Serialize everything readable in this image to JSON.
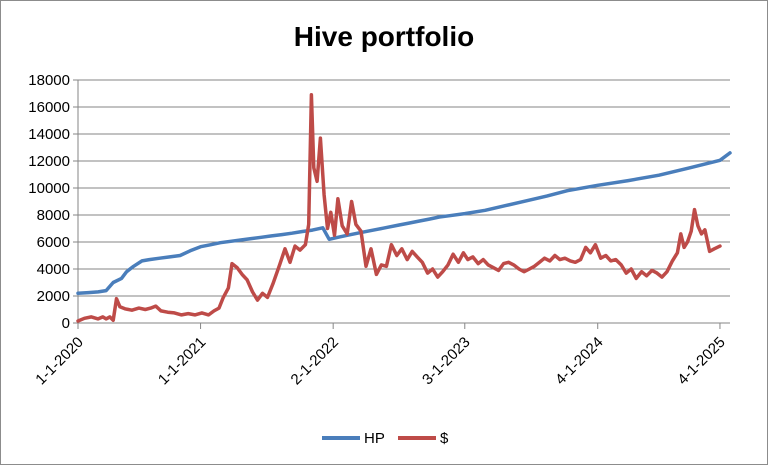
{
  "chart_data": {
    "type": "line",
    "title": "Hive portfolio",
    "xlabel": "",
    "ylabel": "",
    "ylim": [
      0,
      18000
    ],
    "y_ticks": [
      "0",
      "2000",
      "4000",
      "6000",
      "8000",
      "10000",
      "12000",
      "14000",
      "16000",
      "18000"
    ],
    "x_ticks": [
      "1-1-2020",
      "1-1-2021",
      "2-1-2022",
      "3-1-2023",
      "4-1-2024",
      "4-1-2025"
    ],
    "x_tick_dates": [
      "2020-01-01",
      "2021-01-01",
      "2022-02-01",
      "2023-03-01",
      "2024-04-01",
      "2025-04-01"
    ],
    "xlim": [
      "2020-01-01",
      "2025-05-01"
    ],
    "grid": "horizontal",
    "legend_position": "bottom",
    "series": [
      {
        "name": "HP",
        "color": "#4a7ebb",
        "points": [
          [
            "2020-01-01",
            2200
          ],
          [
            "2020-02-01",
            2250
          ],
          [
            "2020-03-01",
            2300
          ],
          [
            "2020-03-25",
            2400
          ],
          [
            "2020-04-15",
            3000
          ],
          [
            "2020-05-10",
            3300
          ],
          [
            "2020-05-25",
            3800
          ],
          [
            "2020-06-15",
            4200
          ],
          [
            "2020-07-10",
            4600
          ],
          [
            "2020-08-01",
            4700
          ],
          [
            "2020-09-01",
            4800
          ],
          [
            "2020-10-01",
            4900
          ],
          [
            "2020-11-01",
            5000
          ],
          [
            "2020-12-01",
            5350
          ],
          [
            "2021-01-01",
            5650
          ],
          [
            "2021-02-01",
            5800
          ],
          [
            "2021-03-01",
            5950
          ],
          [
            "2021-04-01",
            6050
          ],
          [
            "2021-05-01",
            6150
          ],
          [
            "2021-06-01",
            6250
          ],
          [
            "2021-07-01",
            6350
          ],
          [
            "2021-08-01",
            6450
          ],
          [
            "2021-09-01",
            6550
          ],
          [
            "2021-10-01",
            6650
          ],
          [
            "2021-11-01",
            6780
          ],
          [
            "2021-12-01",
            6880
          ],
          [
            "2022-01-01",
            7050
          ],
          [
            "2022-01-20",
            6200
          ],
          [
            "2022-02-15",
            6350
          ],
          [
            "2022-03-15",
            6500
          ],
          [
            "2022-04-15",
            6650
          ],
          [
            "2022-05-15",
            6800
          ],
          [
            "2022-06-15",
            6950
          ],
          [
            "2022-07-15",
            7100
          ],
          [
            "2022-08-15",
            7250
          ],
          [
            "2022-09-15",
            7400
          ],
          [
            "2022-10-15",
            7550
          ],
          [
            "2022-11-15",
            7700
          ],
          [
            "2022-12-15",
            7850
          ],
          [
            "2023-01-15",
            7950
          ],
          [
            "2023-03-01",
            8100
          ],
          [
            "2023-05-01",
            8350
          ],
          [
            "2023-07-01",
            8700
          ],
          [
            "2023-09-01",
            9050
          ],
          [
            "2023-11-01",
            9400
          ],
          [
            "2024-01-01",
            9800
          ],
          [
            "2024-04-01",
            10200
          ],
          [
            "2024-07-01",
            10550
          ],
          [
            "2024-10-01",
            10950
          ],
          [
            "2025-01-01",
            11500
          ],
          [
            "2025-04-01",
            12050
          ],
          [
            "2025-05-01",
            12600
          ]
        ]
      },
      {
        "name": "$",
        "color": "#be4b48",
        "points": [
          [
            "2020-01-01",
            150
          ],
          [
            "2020-01-20",
            350
          ],
          [
            "2020-02-10",
            450
          ],
          [
            "2020-03-01",
            300
          ],
          [
            "2020-03-15",
            450
          ],
          [
            "2020-03-25",
            300
          ],
          [
            "2020-04-05",
            450
          ],
          [
            "2020-04-15",
            200
          ],
          [
            "2020-04-25",
            1800
          ],
          [
            "2020-05-05",
            1200
          ],
          [
            "2020-05-20",
            1050
          ],
          [
            "2020-06-10",
            950
          ],
          [
            "2020-07-01",
            1100
          ],
          [
            "2020-07-20",
            1000
          ],
          [
            "2020-08-05",
            1100
          ],
          [
            "2020-08-20",
            1250
          ],
          [
            "2020-09-05",
            900
          ],
          [
            "2020-09-25",
            800
          ],
          [
            "2020-10-15",
            750
          ],
          [
            "2020-11-05",
            600
          ],
          [
            "2020-11-25",
            700
          ],
          [
            "2020-12-15",
            600
          ],
          [
            "2021-01-05",
            750
          ],
          [
            "2021-01-25",
            600
          ],
          [
            "2021-02-10",
            900
          ],
          [
            "2021-02-25",
            1100
          ],
          [
            "2021-03-10",
            1900
          ],
          [
            "2021-03-25",
            2600
          ],
          [
            "2021-04-05",
            4400
          ],
          [
            "2021-04-20",
            4100
          ],
          [
            "2021-05-05",
            3600
          ],
          [
            "2021-05-20",
            3200
          ],
          [
            "2021-06-05",
            2300
          ],
          [
            "2021-06-20",
            1700
          ],
          [
            "2021-07-05",
            2200
          ],
          [
            "2021-07-20",
            1900
          ],
          [
            "2021-08-05",
            2900
          ],
          [
            "2021-08-25",
            4300
          ],
          [
            "2021-09-10",
            5500
          ],
          [
            "2021-09-25",
            4500
          ],
          [
            "2021-10-10",
            5700
          ],
          [
            "2021-10-25",
            5400
          ],
          [
            "2021-11-10",
            5800
          ],
          [
            "2021-11-20",
            7300
          ],
          [
            "2021-11-28",
            16900
          ],
          [
            "2021-12-05",
            11500
          ],
          [
            "2021-12-15",
            10500
          ],
          [
            "2021-12-25",
            13700
          ],
          [
            "2022-01-05",
            9500
          ],
          [
            "2022-01-15",
            7000
          ],
          [
            "2022-01-25",
            8200
          ],
          [
            "2022-02-05",
            6500
          ],
          [
            "2022-02-15",
            9200
          ],
          [
            "2022-02-28",
            7200
          ],
          [
            "2022-03-15",
            6600
          ],
          [
            "2022-03-28",
            9000
          ],
          [
            "2022-04-10",
            7300
          ],
          [
            "2022-04-25",
            6800
          ],
          [
            "2022-05-10",
            4200
          ],
          [
            "2022-05-25",
            5500
          ],
          [
            "2022-06-10",
            3600
          ],
          [
            "2022-06-25",
            4300
          ],
          [
            "2022-07-10",
            4200
          ],
          [
            "2022-07-25",
            5800
          ],
          [
            "2022-08-10",
            5000
          ],
          [
            "2022-08-25",
            5500
          ],
          [
            "2022-09-10",
            4700
          ],
          [
            "2022-09-25",
            5300
          ],
          [
            "2022-10-10",
            4900
          ],
          [
            "2022-10-25",
            4500
          ],
          [
            "2022-11-10",
            3700
          ],
          [
            "2022-11-25",
            4000
          ],
          [
            "2022-12-10",
            3400
          ],
          [
            "2022-12-25",
            3800
          ],
          [
            "2023-01-10",
            4300
          ],
          [
            "2023-01-25",
            5100
          ],
          [
            "2023-02-10",
            4500
          ],
          [
            "2023-02-25",
            5200
          ],
          [
            "2023-03-10",
            4700
          ],
          [
            "2023-03-25",
            4900
          ],
          [
            "2023-04-10",
            4400
          ],
          [
            "2023-04-25",
            4700
          ],
          [
            "2023-05-10",
            4300
          ],
          [
            "2023-05-25",
            4100
          ],
          [
            "2023-06-10",
            3900
          ],
          [
            "2023-06-25",
            4400
          ],
          [
            "2023-07-10",
            4500
          ],
          [
            "2023-07-25",
            4300
          ],
          [
            "2023-08-10",
            4000
          ],
          [
            "2023-08-25",
            3800
          ],
          [
            "2023-09-10",
            4000
          ],
          [
            "2023-09-25",
            4200
          ],
          [
            "2023-10-10",
            4500
          ],
          [
            "2023-10-25",
            4800
          ],
          [
            "2023-11-10",
            4600
          ],
          [
            "2023-11-25",
            5000
          ],
          [
            "2023-12-10",
            4700
          ],
          [
            "2023-12-25",
            4800
          ],
          [
            "2024-01-10",
            4600
          ],
          [
            "2024-01-25",
            4500
          ],
          [
            "2024-02-10",
            4700
          ],
          [
            "2024-02-25",
            5600
          ],
          [
            "2024-03-10",
            5200
          ],
          [
            "2024-03-25",
            5800
          ],
          [
            "2024-04-10",
            4800
          ],
          [
            "2024-04-25",
            5000
          ],
          [
            "2024-05-10",
            4600
          ],
          [
            "2024-05-25",
            4700
          ],
          [
            "2024-06-10",
            4300
          ],
          [
            "2024-06-25",
            3700
          ],
          [
            "2024-07-10",
            4000
          ],
          [
            "2024-07-25",
            3300
          ],
          [
            "2024-08-10",
            3800
          ],
          [
            "2024-08-25",
            3500
          ],
          [
            "2024-09-10",
            3900
          ],
          [
            "2024-09-25",
            3700
          ],
          [
            "2024-10-10",
            3400
          ],
          [
            "2024-10-25",
            3800
          ],
          [
            "2024-11-10",
            4600
          ],
          [
            "2024-11-25",
            5200
          ],
          [
            "2024-12-05",
            6600
          ],
          [
            "2024-12-15",
            5600
          ],
          [
            "2024-12-25",
            6000
          ],
          [
            "2025-01-05",
            6800
          ],
          [
            "2025-01-15",
            8400
          ],
          [
            "2025-01-25",
            7200
          ],
          [
            "2025-02-05",
            6600
          ],
          [
            "2025-02-15",
            6900
          ],
          [
            "2025-03-01",
            5300
          ],
          [
            "2025-03-15",
            5500
          ],
          [
            "2025-04-01",
            5700
          ]
        ]
      }
    ]
  }
}
